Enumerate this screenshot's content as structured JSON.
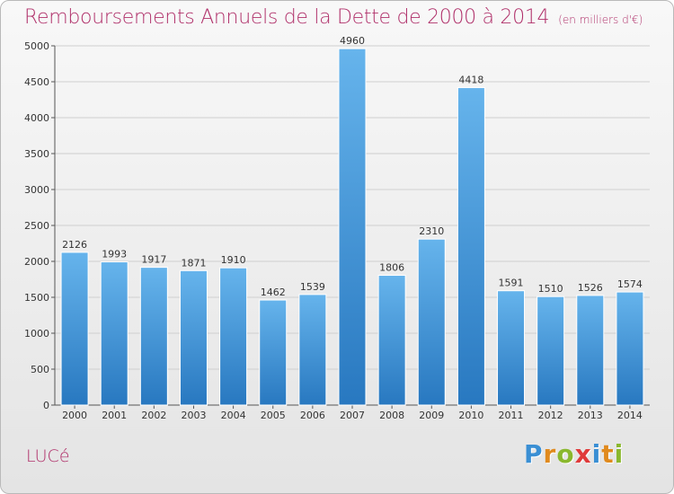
{
  "header": {
    "title": "Remboursements Annuels de la Dette de 2000 à 2014",
    "subtitle": "(en milliers d'€)"
  },
  "footer": {
    "commune": "LUCé",
    "logo": "Proxiti"
  },
  "colors": {
    "title": "#b0306a",
    "bar_top": "#66b4ec",
    "bar_bottom": "#2878c0",
    "logo_letters": [
      "#3a8fd4",
      "#e08a1e",
      "#8ab82e",
      "#e03a3a",
      "#3a8fd4",
      "#e08a1e",
      "#8ab82e"
    ]
  },
  "chart_data": {
    "type": "bar",
    "categories": [
      "2000",
      "2001",
      "2002",
      "2003",
      "2004",
      "2005",
      "2006",
      "2007",
      "2008",
      "2009",
      "2010",
      "2011",
      "2012",
      "2013",
      "2014"
    ],
    "values": [
      2126,
      1993,
      1917,
      1871,
      1910,
      1462,
      1539,
      4960,
      1806,
      2310,
      4418,
      1591,
      1510,
      1526,
      1574
    ],
    "yticks": [
      0,
      500,
      1000,
      1500,
      2000,
      2500,
      3000,
      3500,
      4000,
      4500,
      5000
    ],
    "ylim": [
      0,
      5000
    ],
    "grid": true,
    "data_labels": true
  }
}
